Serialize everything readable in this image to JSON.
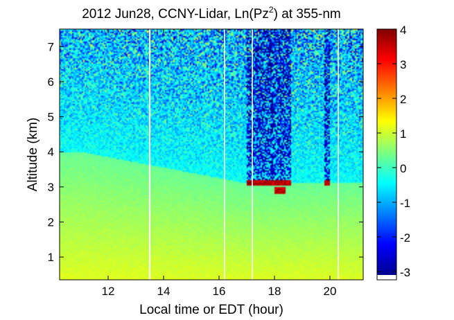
{
  "chart_data": {
    "type": "heatmap",
    "title": "2012 Jun28, CCNY-Lidar, Ln(Pz",
    "title_superscript": "2",
    "title_suffix": ") at 355-nm",
    "xlabel": "Local time or EDT (hour)",
    "ylabel": "Altitude (km)",
    "xlim": [
      10.25,
      21.2
    ],
    "ylim": [
      0.35,
      7.5
    ],
    "xticks": [
      12,
      14,
      16,
      18,
      20
    ],
    "yticks": [
      1,
      2,
      3,
      4,
      5,
      6,
      7
    ],
    "colorbar": {
      "range": [
        -3.1,
        4.0
      ],
      "ticks": [
        -3,
        -2,
        -1,
        0,
        1,
        2,
        3,
        4
      ],
      "colormap": "jet"
    },
    "data_gaps_hour": [
      13.5,
      16.2,
      17.2,
      20.3
    ],
    "features": {
      "boundary_layer_top_km": 3.1,
      "cloud_layer_km": [
        3.1,
        2.9
      ],
      "cloud_time_ranges_hour": [
        [
          17.0,
          18.6
        ],
        [
          19.8,
          20.0
        ]
      ],
      "near_surface_value": 1.2,
      "upper_air_value": -0.4
    }
  }
}
